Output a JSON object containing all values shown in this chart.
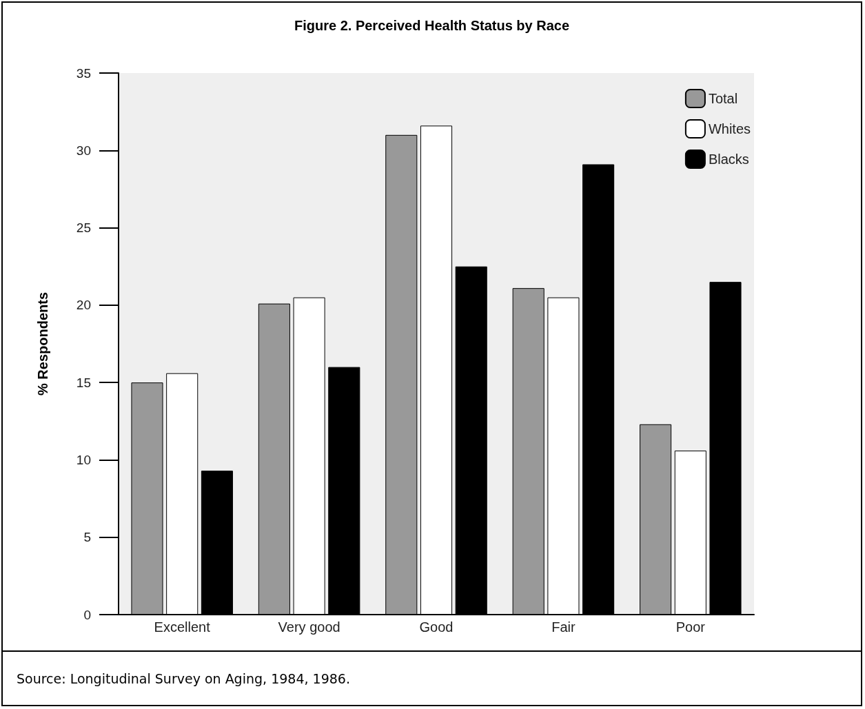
{
  "chart_data": {
    "type": "bar",
    "title": "Figure 2. Perceived Health Status by Race",
    "ylabel": "% Respondents",
    "categories": [
      "Excellent",
      "Very good",
      "Good",
      "Fair",
      "Poor"
    ],
    "series": [
      {
        "name": "Total",
        "color": "#999999",
        "values": [
          15.0,
          20.1,
          31.0,
          21.1,
          12.3
        ]
      },
      {
        "name": "Whites",
        "color": "#ffffff",
        "values": [
          15.6,
          20.5,
          31.6,
          20.5,
          10.6
        ]
      },
      {
        "name": "Blacks",
        "color": "#000000",
        "values": [
          9.3,
          16.0,
          22.5,
          29.1,
          21.5
        ]
      }
    ],
    "ylim": [
      0,
      35
    ],
    "yticks": [
      0,
      5,
      10,
      15,
      20,
      25,
      30,
      35
    ],
    "grid": false,
    "legend": "top right",
    "annotations": [
      "Source: Longitudinal Survey on Aging, 1984, 1986."
    ]
  }
}
